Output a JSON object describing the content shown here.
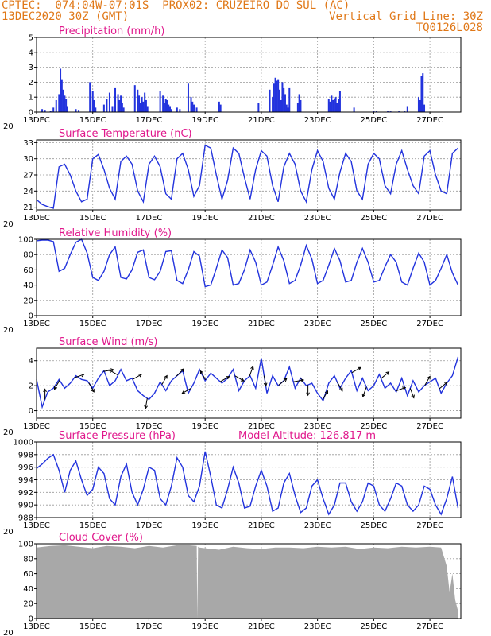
{
  "header": {
    "line1_left": "CPTEC:  074:04W-07:01S  PROX02: CRUZEIRO DO SUL (AC)",
    "line2_left": "13DEC2020 30Z (GMT)",
    "line2_right": "Vertical Grid Line: 30Z",
    "line3_right": "TQ0126L028"
  },
  "colors": {
    "header": "#e07818",
    "title": "#e0188c",
    "series": "#2233dd",
    "cloud": "#a8a8a8"
  },
  "x_axis": {
    "ticks": [
      "13DEC",
      "15DEC",
      "17DEC",
      "19DEC",
      "21DEC",
      "23DEC",
      "25DEC",
      "27DEC"
    ],
    "tick_days": [
      13,
      15,
      17,
      19,
      21,
      23,
      25,
      27
    ],
    "range_days": [
      13,
      28.1
    ],
    "minor_label": "20"
  },
  "chart_data": [
    {
      "id": "precipitation",
      "type": "bar",
      "title": "Precipitation (mm/h)",
      "ylim": [
        0,
        5
      ],
      "yticks": [
        0,
        1,
        2,
        3,
        4,
        5
      ],
      "x": [
        13.2,
        13.3,
        13.5,
        13.6,
        13.7,
        13.8,
        13.85,
        13.9,
        13.95,
        14.0,
        14.05,
        14.1,
        14.4,
        14.5,
        14.9,
        15.0,
        15.05,
        15.1,
        15.4,
        15.5,
        15.6,
        15.7,
        15.8,
        15.9,
        15.95,
        16.0,
        16.05,
        16.1,
        16.5,
        16.6,
        16.65,
        16.7,
        16.75,
        16.8,
        16.85,
        16.9,
        16.95,
        17.4,
        17.5,
        17.55,
        17.6,
        17.65,
        17.7,
        17.75,
        17.8,
        18.0,
        18.1,
        18.4,
        18.5,
        18.55,
        18.6,
        18.7,
        19.5,
        19.55,
        20.9,
        21.3,
        21.4,
        21.45,
        21.5,
        21.55,
        21.6,
        21.65,
        21.7,
        21.75,
        21.8,
        21.85,
        21.9,
        21.95,
        22.0,
        22.3,
        22.35,
        22.4,
        23.4,
        23.45,
        23.5,
        23.55,
        23.6,
        23.65,
        23.7,
        23.75,
        23.8,
        24.3,
        25.0,
        25.1,
        25.5,
        25.6,
        25.9,
        26.1,
        26.2,
        26.6,
        26.65,
        26.7,
        26.75,
        26.8
      ],
      "values": [
        0.2,
        0.15,
        0.1,
        0.3,
        0.8,
        1.2,
        2.9,
        2.2,
        1.5,
        1.1,
        0.9,
        0.4,
        0.2,
        0.15,
        2.0,
        1.4,
        0.8,
        0.3,
        0.5,
        0.9,
        1.3,
        0.4,
        1.6,
        1.2,
        0.8,
        1.1,
        0.6,
        0.3,
        1.8,
        1.5,
        1.1,
        0.6,
        1.0,
        0.7,
        1.3,
        0.8,
        0.4,
        1.4,
        1.1,
        0.6,
        0.9,
        0.8,
        0.5,
        0.4,
        0.2,
        0.3,
        0.2,
        1.9,
        1.0,
        0.7,
        0.5,
        0.3,
        0.7,
        0.5,
        0.6,
        1.5,
        1.0,
        1.9,
        2.3,
        2.1,
        2.2,
        1.5,
        0.8,
        2.0,
        1.6,
        1.2,
        0.5,
        0.3,
        1.6,
        0.6,
        1.2,
        0.8,
        0.9,
        0.7,
        1.1,
        0.8,
        0.9,
        1.0,
        0.6,
        0.9,
        1.4,
        0.3,
        0.1,
        0.1,
        0.05,
        0.05,
        0.05,
        0.05,
        0.4,
        1.0,
        0.8,
        2.4,
        2.6,
        0.5
      ]
    },
    {
      "id": "temperature",
      "type": "line",
      "title": "Surface Temperature (nC)",
      "ylim": [
        20.5,
        33.5
      ],
      "yticks": [
        21,
        24,
        27,
        30,
        33
      ],
      "x": [
        13.0,
        13.2,
        13.4,
        13.6,
        13.8,
        14.0,
        14.2,
        14.4,
        14.6,
        14.8,
        15.0,
        15.2,
        15.4,
        15.6,
        15.8,
        16.0,
        16.2,
        16.4,
        16.6,
        16.8,
        17.0,
        17.2,
        17.4,
        17.6,
        17.8,
        18.0,
        18.2,
        18.4,
        18.6,
        18.8,
        19.0,
        19.2,
        19.4,
        19.6,
        19.8,
        20.0,
        20.2,
        20.4,
        20.6,
        20.8,
        21.0,
        21.2,
        21.4,
        21.6,
        21.8,
        22.0,
        22.2,
        22.4,
        22.6,
        22.8,
        23.0,
        23.2,
        23.4,
        23.6,
        23.8,
        24.0,
        24.2,
        24.4,
        24.6,
        24.8,
        25.0,
        25.2,
        25.4,
        25.6,
        25.8,
        26.0,
        26.2,
        26.4,
        26.6,
        26.8,
        27.0,
        27.2,
        27.4,
        27.6,
        27.8,
        28.0
      ],
      "values": [
        22.4,
        21.5,
        21.1,
        20.8,
        28.5,
        29.0,
        27.0,
        24.0,
        22.0,
        22.5,
        30.0,
        30.8,
        28.0,
        24.5,
        22.5,
        29.5,
        30.5,
        29.0,
        24.0,
        22.0,
        29.0,
        30.5,
        28.5,
        23.5,
        22.5,
        30.0,
        31.0,
        28.0,
        23.0,
        25.0,
        32.5,
        32.0,
        27.0,
        22.5,
        26.0,
        32.0,
        31.0,
        26.5,
        22.5,
        28.0,
        31.5,
        30.5,
        25.0,
        22.0,
        28.5,
        31.0,
        29.0,
        24.0,
        22.0,
        28.0,
        31.5,
        29.5,
        24.5,
        22.5,
        27.5,
        31.0,
        29.5,
        24.0,
        22.5,
        29.0,
        31.0,
        30.0,
        25.0,
        23.5,
        29.0,
        31.5,
        28.0,
        25.0,
        23.5,
        30.5,
        31.5,
        27.0,
        24.0,
        23.5,
        31.0,
        32.0
      ]
    },
    {
      "id": "humidity",
      "type": "line",
      "title": "Relative Humidity (%)",
      "ylim": [
        0,
        100
      ],
      "yticks": [
        0,
        20,
        40,
        60,
        80,
        100
      ],
      "x": [
        13.0,
        13.2,
        13.4,
        13.6,
        13.8,
        14.0,
        14.2,
        14.4,
        14.6,
        14.8,
        15.0,
        15.2,
        15.4,
        15.6,
        15.8,
        16.0,
        16.2,
        16.4,
        16.6,
        16.8,
        17.0,
        17.2,
        17.4,
        17.6,
        17.8,
        18.0,
        18.2,
        18.4,
        18.6,
        18.8,
        19.0,
        19.2,
        19.4,
        19.6,
        19.8,
        20.0,
        20.2,
        20.4,
        20.6,
        20.8,
        21.0,
        21.2,
        21.4,
        21.6,
        21.8,
        22.0,
        22.2,
        22.4,
        22.6,
        22.8,
        23.0,
        23.2,
        23.4,
        23.6,
        23.8,
        24.0,
        24.2,
        24.4,
        24.6,
        24.8,
        25.0,
        25.2,
        25.4,
        25.6,
        25.8,
        26.0,
        26.2,
        26.4,
        26.6,
        26.8,
        27.0,
        27.2,
        27.4,
        27.6,
        27.8,
        28.0
      ],
      "values": [
        98,
        99,
        99,
        97,
        58,
        62,
        80,
        96,
        100,
        82,
        50,
        46,
        58,
        80,
        90,
        50,
        48,
        60,
        83,
        86,
        50,
        47,
        58,
        84,
        85,
        46,
        42,
        60,
        84,
        78,
        38,
        40,
        62,
        86,
        76,
        40,
        42,
        60,
        86,
        70,
        40,
        44,
        66,
        90,
        72,
        42,
        46,
        66,
        92,
        74,
        42,
        46,
        66,
        88,
        72,
        44,
        46,
        70,
        88,
        70,
        44,
        46,
        64,
        80,
        70,
        44,
        40,
        62,
        82,
        70,
        40,
        46,
        62,
        80,
        56,
        40
      ]
    },
    {
      "id": "wind",
      "type": "line",
      "title": "Surface Wind (m/s)",
      "ylim": [
        -0.6,
        5
      ],
      "yticks": [
        0,
        2,
        4
      ],
      "x": [
        13.0,
        13.2,
        13.4,
        13.6,
        13.8,
        14.0,
        14.2,
        14.4,
        14.6,
        14.8,
        15.0,
        15.2,
        15.4,
        15.6,
        15.8,
        16.0,
        16.2,
        16.4,
        16.6,
        16.8,
        17.0,
        17.2,
        17.4,
        17.6,
        17.8,
        18.0,
        18.2,
        18.4,
        18.6,
        18.8,
        19.0,
        19.2,
        19.4,
        19.6,
        19.8,
        20.0,
        20.2,
        20.4,
        20.6,
        20.8,
        21.0,
        21.2,
        21.4,
        21.6,
        21.8,
        22.0,
        22.2,
        22.4,
        22.6,
        22.8,
        23.0,
        23.2,
        23.4,
        23.6,
        23.8,
        24.0,
        24.2,
        24.4,
        24.6,
        24.8,
        25.0,
        25.2,
        25.4,
        25.6,
        25.8,
        26.0,
        26.2,
        26.4,
        26.6,
        26.8,
        27.0,
        27.2,
        27.4,
        27.6,
        27.8,
        28.0
      ],
      "values": [
        2.5,
        0.3,
        1.5,
        1.8,
        2.5,
        1.8,
        2.2,
        2.8,
        2.5,
        2.4,
        1.8,
        2.6,
        3.2,
        2.0,
        2.4,
        3.3,
        2.4,
        2.6,
        1.6,
        1.2,
        0.9,
        1.4,
        2.3,
        1.6,
        2.4,
        2.8,
        3.2,
        1.4,
        2.2,
        3.3,
        2.4,
        3.0,
        2.6,
        2.2,
        2.6,
        3.3,
        1.6,
        2.4,
        2.8,
        1.8,
        4.2,
        1.4,
        2.8,
        2.0,
        2.4,
        3.5,
        1.8,
        2.6,
        2.0,
        2.2,
        1.4,
        0.8,
        2.2,
        2.8,
        1.8,
        2.6,
        3.2,
        1.6,
        2.6,
        1.6,
        2.0,
        2.9,
        1.8,
        2.2,
        1.5,
        2.6,
        1.2,
        2.4,
        1.5,
        2.0,
        2.3,
        2.6,
        1.4,
        2.2,
        2.8,
        4.3
      ]
    },
    {
      "id": "pressure",
      "type": "line",
      "title": "Surface Pressure (hPa)",
      "subtitle": "Model Altitude: 126.817 m",
      "ylim": [
        988,
        1000
      ],
      "yticks": [
        988,
        990,
        992,
        994,
        996,
        998,
        1000
      ],
      "x": [
        13.0,
        13.2,
        13.4,
        13.6,
        13.8,
        14.0,
        14.2,
        14.4,
        14.6,
        14.8,
        15.0,
        15.2,
        15.4,
        15.6,
        15.8,
        16.0,
        16.2,
        16.4,
        16.6,
        16.8,
        17.0,
        17.2,
        17.4,
        17.6,
        17.8,
        18.0,
        18.2,
        18.4,
        18.6,
        18.8,
        19.0,
        19.2,
        19.4,
        19.6,
        19.8,
        20.0,
        20.2,
        20.4,
        20.6,
        20.8,
        21.0,
        21.2,
        21.4,
        21.6,
        21.8,
        22.0,
        22.2,
        22.4,
        22.6,
        22.8,
        23.0,
        23.2,
        23.4,
        23.6,
        23.8,
        24.0,
        24.2,
        24.4,
        24.6,
        24.8,
        25.0,
        25.2,
        25.4,
        25.6,
        25.8,
        26.0,
        26.2,
        26.4,
        26.6,
        26.8,
        27.0,
        27.2,
        27.4,
        27.6,
        27.8,
        28.0
      ],
      "values": [
        995.8,
        996.5,
        997.4,
        998.0,
        995.5,
        992.0,
        995.5,
        997.0,
        994.0,
        991.5,
        992.5,
        996.0,
        995.0,
        991.0,
        990.0,
        994.5,
        996.5,
        992.0,
        990.0,
        992.5,
        996.0,
        995.5,
        991.0,
        990.0,
        993.0,
        997.5,
        996.0,
        991.5,
        990.5,
        993.0,
        998.5,
        994.5,
        990.0,
        989.5,
        992.5,
        996.0,
        993.5,
        989.5,
        989.8,
        993.0,
        995.5,
        993.0,
        989.0,
        989.5,
        993.5,
        995.0,
        991.5,
        988.8,
        989.5,
        993.0,
        994.0,
        991.0,
        988.5,
        990.0,
        993.5,
        993.5,
        990.5,
        989.0,
        990.5,
        993.5,
        993.0,
        990.0,
        989.0,
        991.0,
        993.5,
        993.0,
        990.0,
        989.0,
        990.0,
        993.0,
        992.5,
        990.0,
        988.5,
        991.0,
        994.5,
        989.5
      ]
    },
    {
      "id": "cloud",
      "type": "area",
      "title": "Cloud Cover (%)",
      "ylim": [
        0,
        100
      ],
      "yticks": [
        0,
        20,
        40,
        60,
        80,
        100
      ],
      "x": [
        13.0,
        13.5,
        14.0,
        14.5,
        15.0,
        15.5,
        16.0,
        16.5,
        17.0,
        17.5,
        18.0,
        18.4,
        18.7,
        18.72,
        18.75,
        18.8,
        19.0,
        19.5,
        20.0,
        20.5,
        21.0,
        21.5,
        22.0,
        22.5,
        23.0,
        23.5,
        24.0,
        24.5,
        25.0,
        25.5,
        26.0,
        26.5,
        27.0,
        27.4,
        27.6,
        27.7,
        27.8,
        27.9,
        28.0
      ],
      "values": [
        95,
        97,
        98,
        96,
        94,
        97,
        96,
        94,
        97,
        95,
        98,
        98,
        97,
        0,
        96,
        95,
        94,
        92,
        96,
        94,
        93,
        95,
        95,
        94,
        96,
        95,
        96,
        93,
        95,
        94,
        96,
        95,
        96,
        95,
        70,
        35,
        60,
        25,
        10
      ]
    }
  ]
}
